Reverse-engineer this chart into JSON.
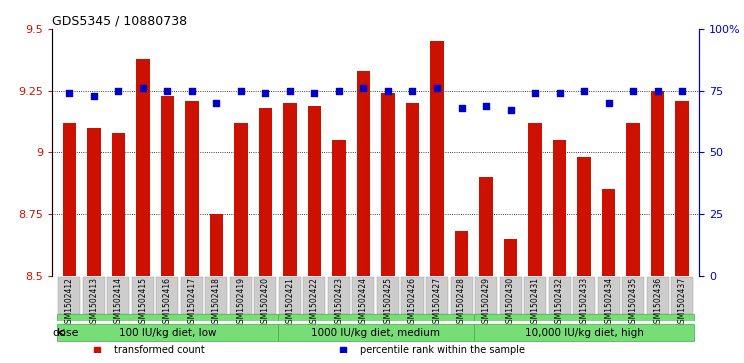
{
  "title": "GDS5345 / 10880738",
  "samples": [
    "GSM1502412",
    "GSM1502413",
    "GSM1502414",
    "GSM1502415",
    "GSM1502416",
    "GSM1502417",
    "GSM1502418",
    "GSM1502419",
    "GSM1502420",
    "GSM1502421",
    "GSM1502422",
    "GSM1502423",
    "GSM1502424",
    "GSM1502425",
    "GSM1502426",
    "GSM1502427",
    "GSM1502428",
    "GSM1502429",
    "GSM1502430",
    "GSM1502431",
    "GSM1502432",
    "GSM1502433",
    "GSM1502434",
    "GSM1502435",
    "GSM1502436",
    "GSM1502437"
  ],
  "bar_values": [
    9.12,
    9.1,
    9.08,
    9.38,
    9.23,
    9.21,
    8.75,
    9.12,
    9.18,
    9.2,
    9.19,
    9.05,
    9.33,
    9.24,
    9.2,
    9.45,
    8.68,
    8.9,
    8.65,
    9.12,
    9.05,
    8.98,
    8.85,
    9.12,
    9.25,
    9.21
  ],
  "blue_values": [
    74,
    73,
    75,
    76,
    75,
    75,
    70,
    75,
    74,
    75,
    74,
    75,
    76,
    75,
    75,
    76,
    68,
    69,
    67,
    74,
    74,
    75,
    70,
    75,
    75,
    75
  ],
  "bar_color": "#cc1100",
  "blue_color": "#0000cc",
  "ylim_left": [
    8.5,
    9.5
  ],
  "ylim_right": [
    0,
    100
  ],
  "yticks_left": [
    8.5,
    8.75,
    9.0,
    9.25,
    9.5
  ],
  "ytick_labels_left": [
    "8.5",
    "8.75",
    "9",
    "9.25",
    "9.5"
  ],
  "yticks_right": [
    0,
    25,
    50,
    75,
    100
  ],
  "ytick_labels_right": [
    "0",
    "25",
    "50",
    "75",
    "100%"
  ],
  "groups": [
    {
      "label": "100 IU/kg diet, low",
      "start": 0,
      "end": 9
    },
    {
      "label": "1000 IU/kg diet, medium",
      "start": 9,
      "end": 17
    },
    {
      "label": "10,000 IU/kg diet, high",
      "start": 17,
      "end": 26
    }
  ],
  "group_color": "#77dd77",
  "group_border_color": "#44aa44",
  "dose_label": "dose",
  "legend_items": [
    {
      "label": "transformed count",
      "color": "#cc1100",
      "marker": "s"
    },
    {
      "label": "percentile rank within the sample",
      "color": "#0000cc",
      "marker": "s"
    }
  ],
  "background_color": "#ffffff",
  "xlabel_bg": "#cccccc"
}
